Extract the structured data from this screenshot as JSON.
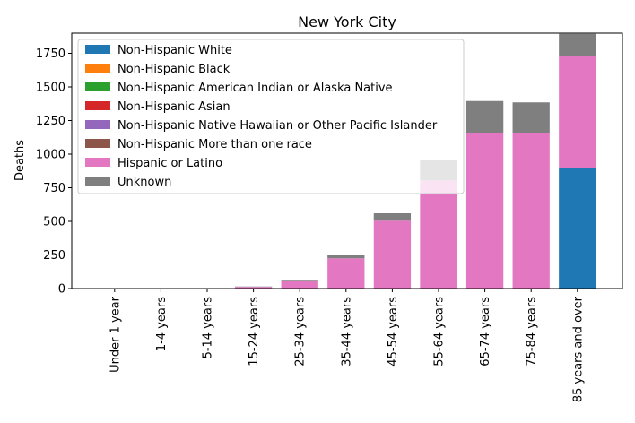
{
  "chart_data": {
    "type": "bar",
    "stacked": true,
    "title": "New York City",
    "xlabel": "",
    "ylabel": "Deaths",
    "ylim": [
      0,
      1900
    ],
    "yticks": [
      0,
      250,
      500,
      750,
      1000,
      1250,
      1500,
      1750
    ],
    "grid": false,
    "legend_position": "top-left",
    "categories": [
      "Under 1 year",
      "1-4 years",
      "5-14 years",
      "15-24 years",
      "25-34 years",
      "35-44 years",
      "45-54 years",
      "55-64 years",
      "65-74 years",
      "75-84 years",
      "85 years and over"
    ],
    "series": [
      {
        "name": "Non-Hispanic White",
        "color": "#1f77b4",
        "values": [
          0,
          0,
          0,
          0,
          0,
          0,
          0,
          0,
          0,
          0,
          900
        ]
      },
      {
        "name": "Non-Hispanic Black",
        "color": "#ff7f0e",
        "values": [
          0,
          0,
          0,
          0,
          0,
          0,
          0,
          0,
          0,
          0,
          0
        ]
      },
      {
        "name": "Non-Hispanic American Indian or Alaska Native",
        "color": "#2ca02c",
        "values": [
          0,
          0,
          0,
          0,
          0,
          0,
          0,
          0,
          0,
          0,
          0
        ]
      },
      {
        "name": "Non-Hispanic Asian",
        "color": "#d62728",
        "values": [
          0,
          0,
          0,
          0,
          0,
          0,
          0,
          0,
          0,
          0,
          0
        ]
      },
      {
        "name": "Non-Hispanic Native Hawaiian or Other Pacific Islander",
        "color": "#9467bd",
        "values": [
          0,
          0,
          0,
          0,
          0,
          0,
          0,
          0,
          0,
          0,
          0
        ]
      },
      {
        "name": "Non-Hispanic More than one race",
        "color": "#8c564b",
        "values": [
          0,
          0,
          0,
          0,
          0,
          0,
          0,
          0,
          0,
          0,
          0
        ]
      },
      {
        "name": "Hispanic or Latino",
        "color": "#e377c2",
        "values": [
          0,
          0,
          0,
          12,
          60,
          225,
          505,
          805,
          1160,
          1160,
          830
        ]
      },
      {
        "name": "Unknown",
        "color": "#7f7f7f",
        "values": [
          0,
          0,
          0,
          3,
          5,
          22,
          55,
          155,
          235,
          225,
          165
        ]
      }
    ]
  }
}
